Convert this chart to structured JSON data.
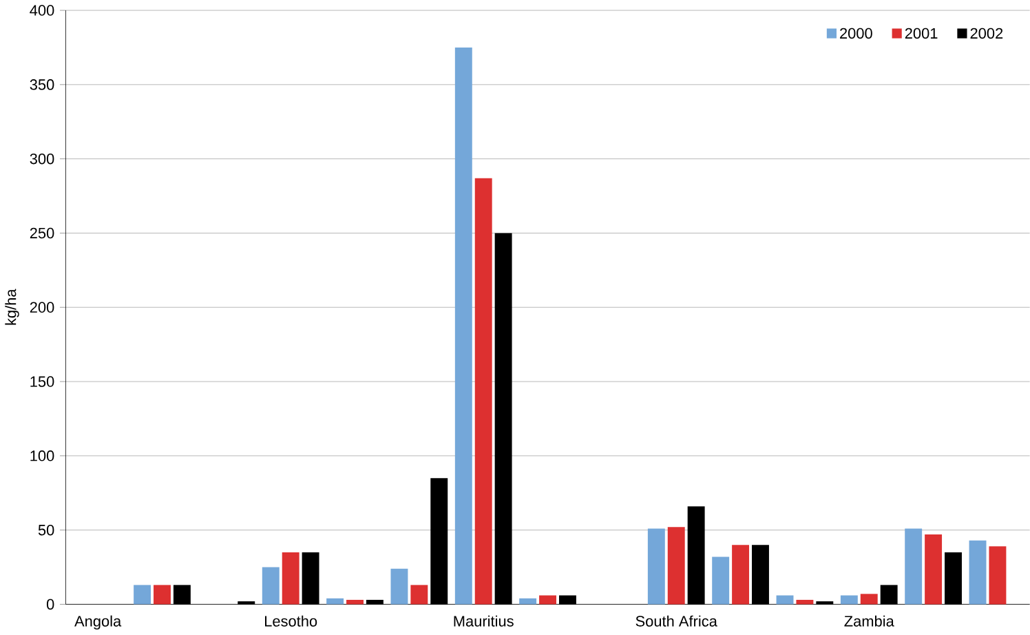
{
  "chart_data": {
    "type": "bar",
    "ylabel": "kg/ha",
    "categories": [
      "Angola",
      null,
      null,
      "Lesotho",
      null,
      null,
      "Mauritius",
      null,
      null,
      "South Africa",
      null,
      null,
      "Zambia",
      null,
      null
    ],
    "series": [
      {
        "name": "2000",
        "color": "#74a7d9",
        "values": [
          0,
          13,
          0,
          25,
          4,
          24,
          375,
          4,
          0,
          51,
          32,
          6,
          6,
          51,
          43
        ]
      },
      {
        "name": "2001",
        "color": "#dd3030",
        "values": [
          0,
          13,
          0,
          35,
          3,
          13,
          287,
          6,
          0,
          52,
          40,
          3,
          7,
          47,
          39
        ]
      },
      {
        "name": "2002",
        "color": "#000000",
        "values": [
          0,
          13,
          2,
          35,
          3,
          85,
          250,
          6,
          0,
          66,
          40,
          2,
          13,
          35,
          null
        ]
      }
    ],
    "ylim": [
      0,
      400
    ],
    "yticks": [
      0,
      50,
      100,
      150,
      200,
      250,
      300,
      350,
      400
    ],
    "grid": "y",
    "legend": "top right"
  }
}
